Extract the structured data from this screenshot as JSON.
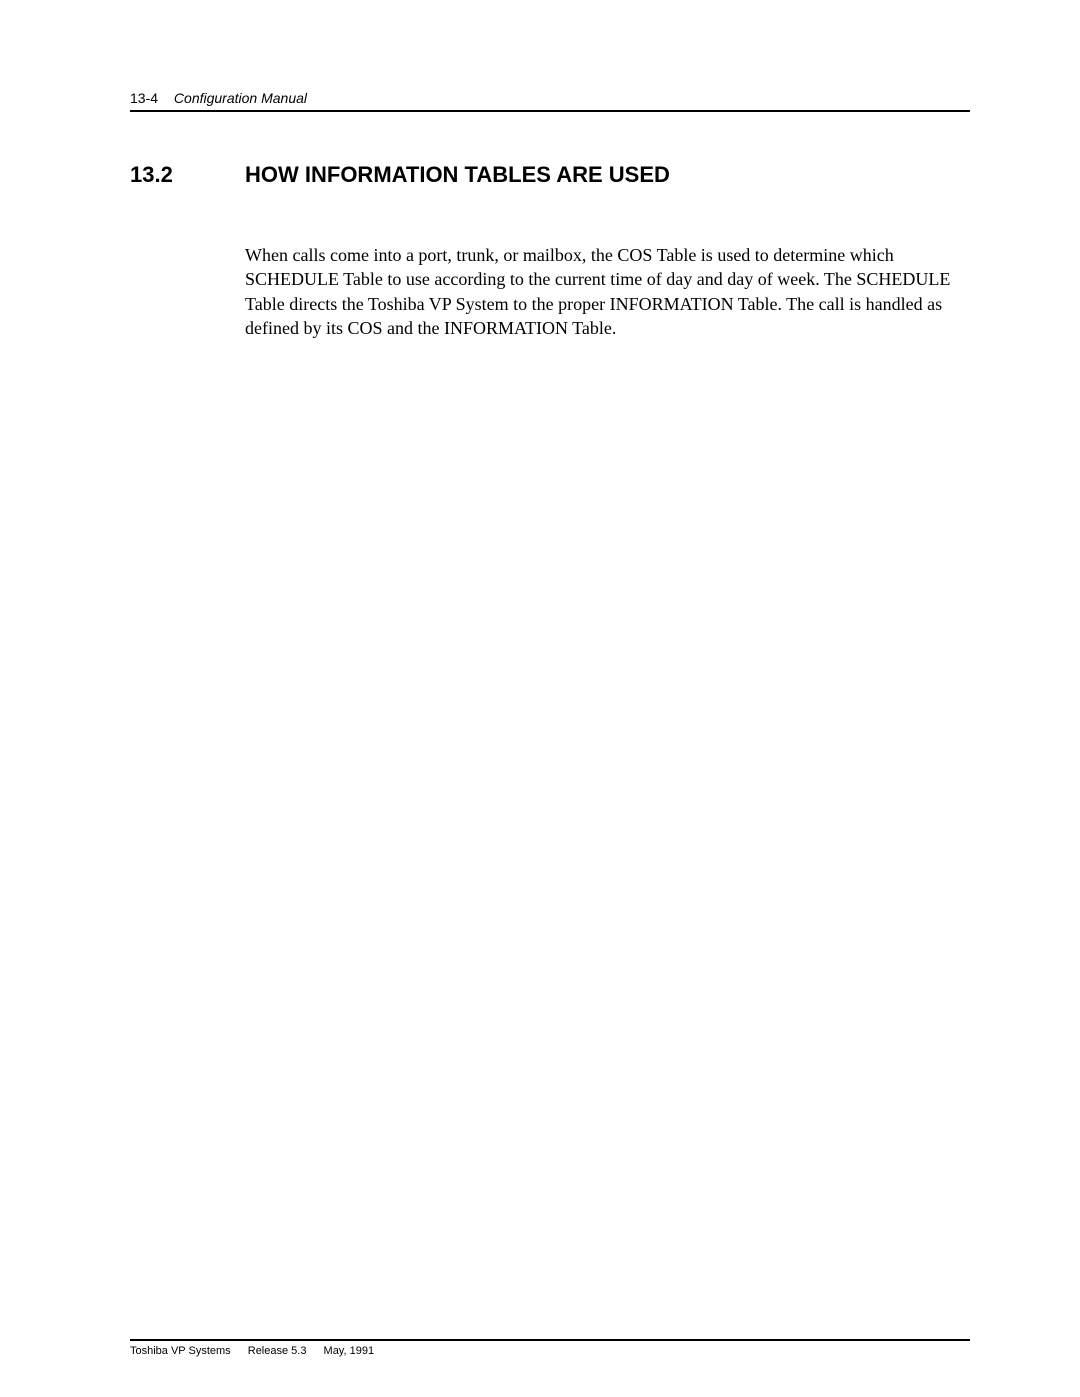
{
  "header": {
    "page_ref": "13-4",
    "doc_title": "Configuration Manual"
  },
  "section": {
    "number": "13.2",
    "title": "HOW INFORMATION TABLES ARE USED"
  },
  "body": {
    "paragraph": "When calls come into a port, trunk, or mailbox, the COS Table is used to determine which SCHEDULE Table to use according to the current time of day and day of week. The SCHEDULE Table directs the Toshiba VP System to the proper INFORMATION Table. The call is handled as defined by its COS and the INFORMATION Table."
  },
  "footer": {
    "company": "Toshiba VP Systems",
    "release": "Release 5.3",
    "date": "May, 1991"
  }
}
